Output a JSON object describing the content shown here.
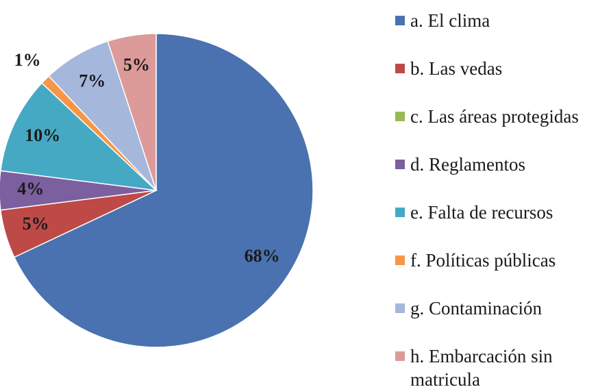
{
  "chart_data": {
    "type": "pie",
    "categories": [
      "a. El clima",
      "b. Las vedas",
      "c. Las áreas protegidas",
      "d. Reglamentos",
      "e. Falta de recursos",
      "f. Políticas públicas",
      "g. Contaminación",
      "h. Embarcación sin matricula"
    ],
    "values": [
      68,
      5,
      0,
      4,
      10,
      1,
      7,
      5
    ],
    "value_labels": [
      "68%",
      "5%",
      null,
      "4%",
      "10%",
      "1%",
      "7%",
      "5%"
    ],
    "colors": [
      "#4a72b0",
      "#bd4a47",
      "#98b954",
      "#7c5f9f",
      "#46a9c4",
      "#f79646",
      "#a6b7dc",
      "#dc9a99"
    ],
    "legend": "right"
  }
}
